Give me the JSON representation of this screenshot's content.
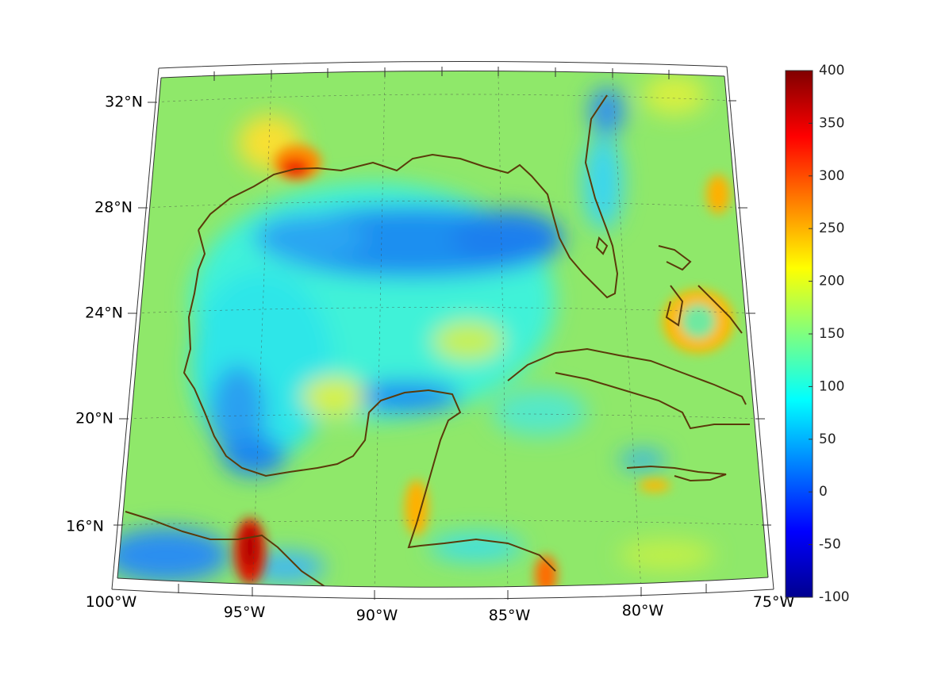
{
  "map": {
    "lat_labels": [
      "32°N",
      "28°N",
      "24°N",
      "20°N",
      "16°N"
    ],
    "lon_labels": [
      "100°W",
      "95°W",
      "90°W",
      "85°W",
      "80°W",
      "75°W"
    ],
    "extent": {
      "lon_min": -100,
      "lon_max": -75,
      "lat_min": 14.5,
      "lat_max": 33
    },
    "coastline_color": "#5a3a0a",
    "background_value_color": "#8fe86a"
  },
  "colorbar": {
    "ticks": [
      "400",
      "350",
      "300",
      "250",
      "200",
      "150",
      "100",
      "50",
      "0",
      "-50",
      "-100"
    ],
    "min": -100,
    "max": 400,
    "colormap": "jet"
  }
}
